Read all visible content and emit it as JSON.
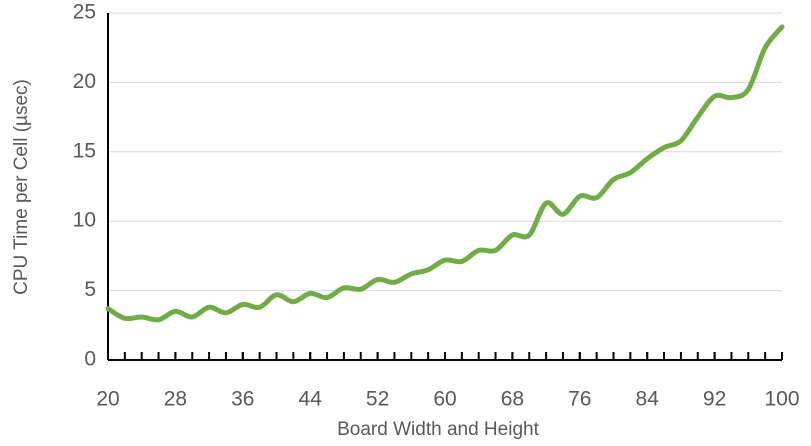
{
  "chart_data": {
    "type": "line",
    "x_label": "Board Width and Height",
    "y_label": "CPU Time per Cell (µsec)",
    "x": [
      20,
      22,
      24,
      26,
      28,
      30,
      32,
      34,
      36,
      38,
      40,
      42,
      44,
      46,
      48,
      50,
      52,
      54,
      56,
      58,
      60,
      62,
      64,
      66,
      68,
      70,
      72,
      74,
      76,
      78,
      80,
      82,
      84,
      86,
      88,
      90,
      92,
      94,
      96,
      98,
      100
    ],
    "series": [
      {
        "name": "CPU Time per Cell",
        "color": "#70ad47",
        "values": [
          3.7,
          3.0,
          3.1,
          2.9,
          3.5,
          3.1,
          3.8,
          3.4,
          4.0,
          3.8,
          4.7,
          4.2,
          4.8,
          4.5,
          5.2,
          5.1,
          5.8,
          5.6,
          6.2,
          6.5,
          7.2,
          7.1,
          7.9,
          7.9,
          9.0,
          9.0,
          11.3,
          10.5,
          11.8,
          11.7,
          13.0,
          13.5,
          14.5,
          15.3,
          15.8,
          17.5,
          19.0,
          18.9,
          19.5,
          22.5,
          24.0
        ]
      }
    ],
    "xlim": [
      20,
      100
    ],
    "xticks": [
      20,
      28,
      36,
      44,
      52,
      60,
      68,
      76,
      84,
      92,
      100
    ],
    "ylim": [
      0,
      25
    ],
    "yticks": [
      0,
      5,
      10,
      15,
      20,
      25
    ],
    "grid": true
  }
}
